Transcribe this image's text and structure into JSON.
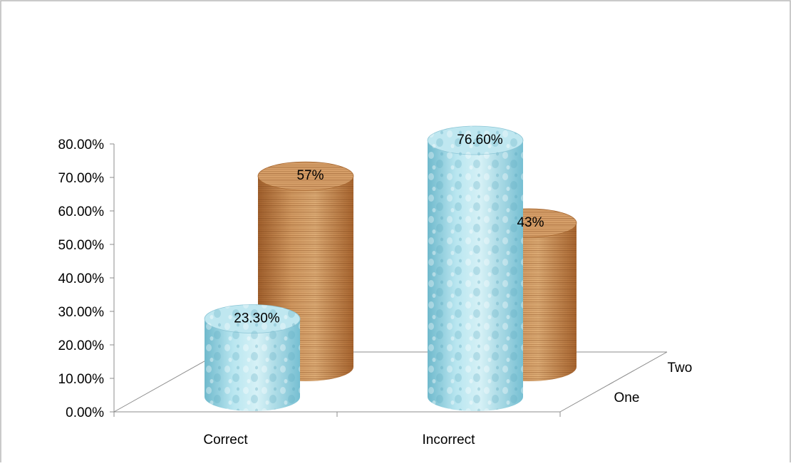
{
  "chart_data": {
    "type": "bar",
    "style": "3d-cylinder",
    "categories": [
      "Correct",
      "Incorrect"
    ],
    "depth_categories": [
      "One",
      "Two"
    ],
    "series": [
      {
        "name": "One",
        "values": [
          0.233,
          0.766
        ],
        "labels": [
          "23.30%",
          "76.60%"
        ],
        "color": "#a6dbe8",
        "texture": "water-droplets"
      },
      {
        "name": "Two",
        "values": [
          0.57,
          0.43
        ],
        "labels": [
          "57%",
          "43%"
        ],
        "color": "#c8864e",
        "texture": "wood-grain"
      }
    ],
    "y_ticks": [
      "0.00%",
      "10.00%",
      "20.00%",
      "30.00%",
      "40.00%",
      "50.00%",
      "60.00%",
      "70.00%",
      "80.00%"
    ],
    "ylim": [
      0,
      0.8
    ],
    "title": "",
    "xlabel": "",
    "ylabel": "",
    "grid": false,
    "legend": "none"
  }
}
